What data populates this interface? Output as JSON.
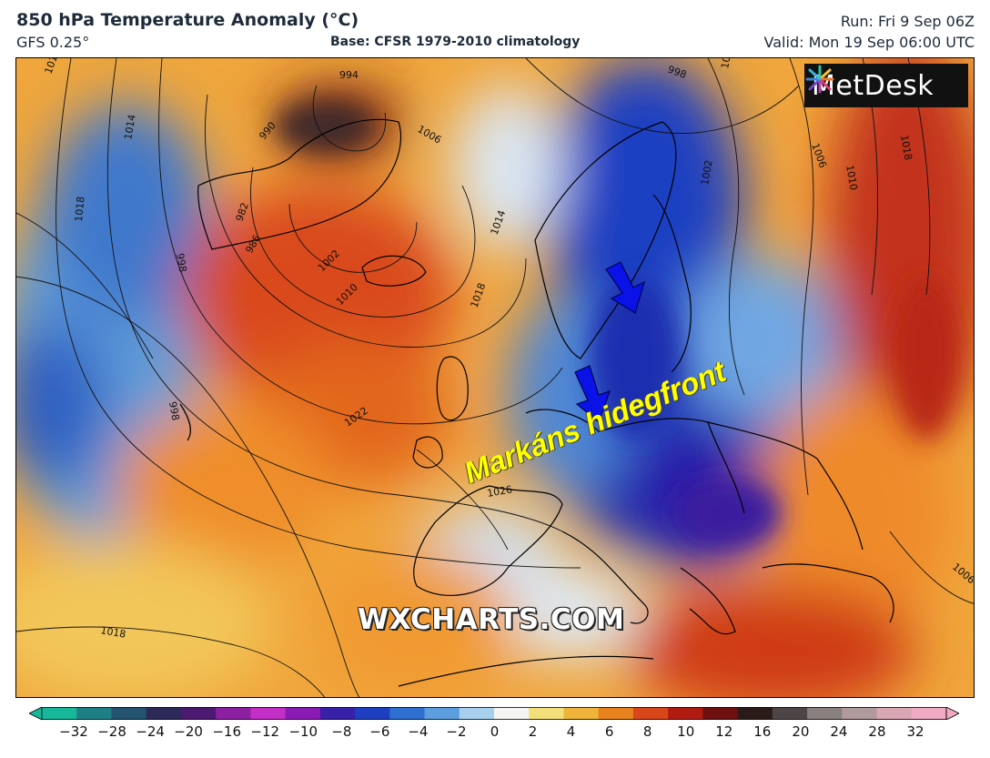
{
  "header": {
    "title": "850 hPa Temperature Anomaly (°C)",
    "model": "GFS 0.25°",
    "base": "Base: CFSR 1979-2010 climatology",
    "run": "Run: Fri 9 Sep 06Z",
    "valid": "Valid: Mon 19 Sep 06:00 UTC"
  },
  "logo": {
    "text": "MetDesk",
    "icon": "metdesk-burst-icon"
  },
  "annotation": {
    "text": "Markáns hidegfront",
    "color": "#ffff00"
  },
  "arrows": {
    "icon": "blue-arrow-icon",
    "count": 2,
    "color": "#0b12e8"
  },
  "watermark": "WXCHARTS.COM",
  "isobar_labels": [
    "1010",
    "1014",
    "1018",
    "994",
    "990",
    "982",
    "986",
    "998",
    "1006",
    "1002",
    "1010",
    "1014",
    "1018",
    "1022",
    "998",
    "1026",
    "1018",
    "998",
    "1006",
    "1010",
    "1018",
    "1006",
    "1002",
    "1006"
  ],
  "colorbar": {
    "ticks": [
      "−32",
      "−28",
      "−24",
      "−20",
      "−16",
      "−12",
      "−10",
      "−8",
      "−6",
      "−4",
      "−2",
      "0",
      "2",
      "4",
      "6",
      "8",
      "10",
      "12",
      "16",
      "20",
      "24",
      "28",
      "32"
    ],
    "colors": [
      "#17b89a",
      "#1f7f86",
      "#24536f",
      "#2d2a5a",
      "#4d1a73",
      "#8d1fa1",
      "#c42fc8",
      "#8a1ab4",
      "#3920a8",
      "#1d3fc0",
      "#2e6fd1",
      "#5c9ee0",
      "#a7cfee",
      "#f4f4f2",
      "#f4e07a",
      "#f1b43a",
      "#e8821f",
      "#d9461a",
      "#b01c12",
      "#6e1110",
      "#2a1b19",
      "#4e4646",
      "#8b8080",
      "#b09a9b",
      "#d9a6b4",
      "#f0aac4"
    ],
    "min_color": "#17b89a",
    "max_color": "#f0aac4"
  }
}
